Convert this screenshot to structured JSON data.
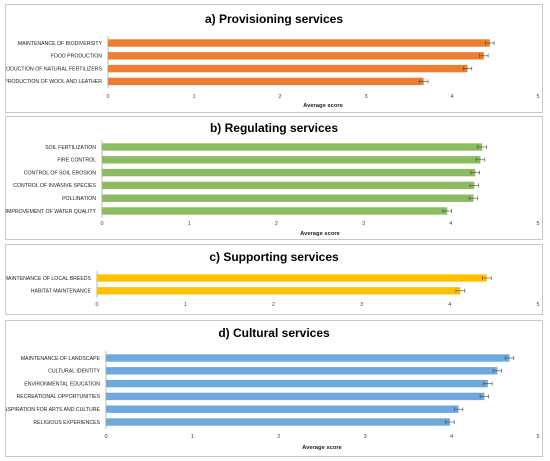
{
  "chart_data": [
    {
      "type": "bar",
      "orientation": "horizontal",
      "title": "a) Provisioning services",
      "xlabel": "Average score",
      "xlim": [
        0,
        5
      ],
      "ticks": [
        "0",
        "1",
        "2",
        "3",
        "4",
        "5"
      ],
      "color": "#ED7D31",
      "categories": [
        "MAINTENANCE OF BIODIVERSITY",
        "FOOD PRODUCTION",
        "PRODUCTION OF NATURAL FERTILIZERS",
        "PRODUCTION OF WOOL AND LEATHER"
      ],
      "values": [
        4.44,
        4.37,
        4.18,
        3.67
      ],
      "errors": [
        0.05,
        0.05,
        0.05,
        0.05
      ],
      "grid": false
    },
    {
      "type": "bar",
      "orientation": "horizontal",
      "title": "b) Regulating services",
      "xlabel": "Average score",
      "xlim": [
        0,
        5
      ],
      "ticks": [
        "0",
        "1",
        "2",
        "3",
        "4",
        "5"
      ],
      "color": "#8DBB5F",
      "categories": [
        "SOIL FERTILIZATION",
        "FIRE CONTROL",
        "CONTROL OF SOIL EROSION",
        "CONTROL OF INVASIVE SPECIES",
        "POLLINATION",
        "IMPROVEMENT OF WATER QUALITY"
      ],
      "values": [
        4.36,
        4.34,
        4.28,
        4.27,
        4.26,
        3.96
      ],
      "errors": [
        0.05,
        0.05,
        0.05,
        0.05,
        0.05,
        0.05
      ],
      "grid": false
    },
    {
      "type": "bar",
      "orientation": "horizontal",
      "title": "c) Supporting services",
      "xlabel": "",
      "xlim": [
        0,
        5
      ],
      "ticks": [
        "0",
        "1",
        "2",
        "3",
        "4",
        "5"
      ],
      "color": "#FFC000",
      "categories": [
        "MAINTENANCE OF LOCAL BREEDS",
        "HABITAT MAINTENANCE"
      ],
      "values": [
        4.42,
        4.12
      ],
      "errors": [
        0.05,
        0.05
      ],
      "grid": false
    },
    {
      "type": "bar",
      "orientation": "horizontal",
      "title": "d) Cultural services",
      "xlabel": "Average score",
      "xlim": [
        0,
        5
      ],
      "ticks": [
        "0",
        "1",
        "2",
        "3",
        "4",
        "5"
      ],
      "color": "#6FA8DC",
      "categories": [
        "MAINTENANCE OF LANDSCAPE",
        "CULTURAL IDENTITY",
        "ENVIRONMENTAL EDUCATION",
        "RECREATIONAL OPPORTUNITIES",
        "INSPIRATION FOR ARTS AND CULTURE",
        "RELIGIOUS EXPERIENCES"
      ],
      "values": [
        4.67,
        4.53,
        4.42,
        4.38,
        4.08,
        3.98
      ],
      "errors": [
        0.05,
        0.05,
        0.05,
        0.05,
        0.05,
        0.05
      ],
      "grid": false
    }
  ]
}
